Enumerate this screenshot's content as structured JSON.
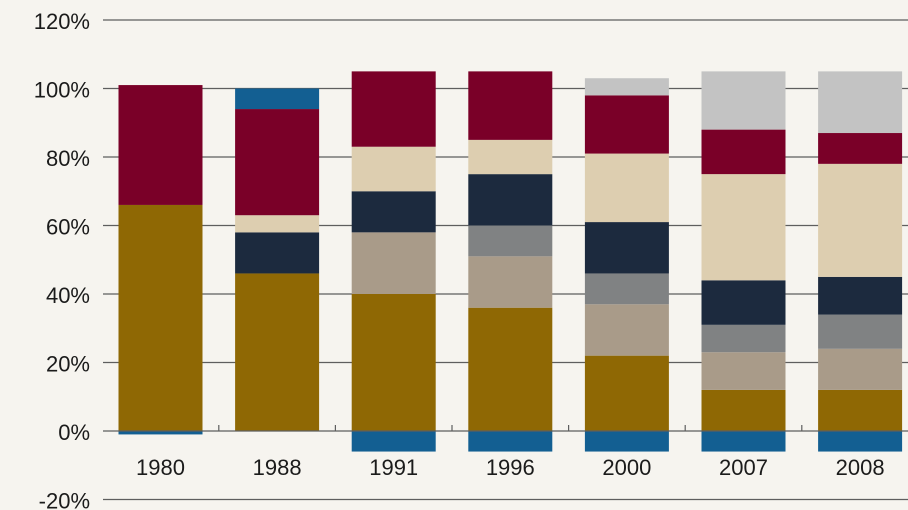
{
  "chart_data": {
    "type": "bar",
    "stacked": true,
    "categories": [
      "1980",
      "1988",
      "1991",
      "1996",
      "2000",
      "2007",
      "2008"
    ],
    "ylim": [
      -20,
      120
    ],
    "yticks": [
      -20,
      0,
      20,
      40,
      60,
      80,
      100,
      120
    ],
    "ytick_labels": [
      "-20%",
      "0%",
      "20%",
      "40%",
      "60%",
      "80%",
      "100%",
      "120%"
    ],
    "grid": true,
    "series": [
      {
        "color": "#8f6804",
        "values": [
          66,
          46,
          40,
          36,
          22,
          12,
          12
        ]
      },
      {
        "color": "#a99b89",
        "values": [
          0,
          0,
          18,
          15,
          15,
          11,
          12
        ]
      },
      {
        "color": "#808283",
        "values": [
          0,
          0,
          0,
          9,
          9,
          8,
          10
        ]
      },
      {
        "color": "#1c2a3e",
        "values": [
          0,
          12,
          12,
          15,
          15,
          13,
          11
        ]
      },
      {
        "color": "#ddceb0",
        "values": [
          0,
          5,
          13,
          10,
          20,
          31,
          33
        ]
      },
      {
        "color": "#7a0028",
        "values": [
          35,
          31,
          22,
          20,
          17,
          13,
          9
        ]
      },
      {
        "color": "#c3c3c3",
        "values": [
          0,
          0,
          0,
          0,
          5,
          17,
          18
        ]
      },
      {
        "color": "#135f92",
        "values": [
          -1,
          6,
          -6,
          -6,
          -6,
          -6,
          -6
        ]
      }
    ]
  }
}
